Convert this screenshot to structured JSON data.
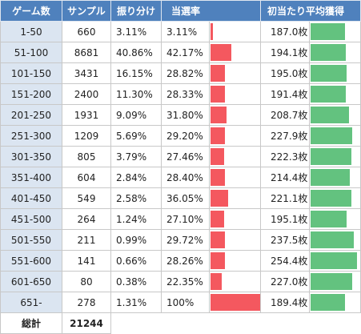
{
  "headers": {
    "game_count": "ゲーム数",
    "samples": "サンプル",
    "distribution": "振り分け",
    "win_rate": "当選率",
    "avg_per_hit": "初当たり平均獲得"
  },
  "rows": [
    {
      "range": "1-50",
      "samples": "660",
      "distribution": "3.11%",
      "win_rate": "3.11%",
      "win_rate_value": 3.11,
      "avg": "187.0枚",
      "avg_value": 187.0
    },
    {
      "range": "51-100",
      "samples": "8681",
      "distribution": "40.86%",
      "win_rate": "42.17%",
      "win_rate_value": 42.17,
      "avg": "194.1枚",
      "avg_value": 194.1
    },
    {
      "range": "101-150",
      "samples": "3431",
      "distribution": "16.15%",
      "win_rate": "28.82%",
      "win_rate_value": 28.82,
      "avg": "195.0枚",
      "avg_value": 195.0
    },
    {
      "range": "151-200",
      "samples": "2400",
      "distribution": "11.30%",
      "win_rate": "28.33%",
      "win_rate_value": 28.33,
      "avg": "191.4枚",
      "avg_value": 191.4
    },
    {
      "range": "201-250",
      "samples": "1931",
      "distribution": "9.09%",
      "win_rate": "31.80%",
      "win_rate_value": 31.8,
      "avg": "208.7枚",
      "avg_value": 208.7
    },
    {
      "range": "251-300",
      "samples": "1209",
      "distribution": "5.69%",
      "win_rate": "29.20%",
      "win_rate_value": 29.2,
      "avg": "227.9枚",
      "avg_value": 227.9
    },
    {
      "range": "301-350",
      "samples": "805",
      "distribution": "3.79%",
      "win_rate": "27.46%",
      "win_rate_value": 27.46,
      "avg": "222.3枚",
      "avg_value": 222.3
    },
    {
      "range": "351-400",
      "samples": "604",
      "distribution": "2.84%",
      "win_rate": "28.40%",
      "win_rate_value": 28.4,
      "avg": "214.4枚",
      "avg_value": 214.4
    },
    {
      "range": "401-450",
      "samples": "549",
      "distribution": "2.58%",
      "win_rate": "36.05%",
      "win_rate_value": 36.05,
      "avg": "221.1枚",
      "avg_value": 221.1
    },
    {
      "range": "451-500",
      "samples": "264",
      "distribution": "1.24%",
      "win_rate": "27.10%",
      "win_rate_value": 27.1,
      "avg": "195.1枚",
      "avg_value": 195.1
    },
    {
      "range": "501-550",
      "samples": "211",
      "distribution": "0.99%",
      "win_rate": "29.72%",
      "win_rate_value": 29.72,
      "avg": "237.5枚",
      "avg_value": 237.5
    },
    {
      "range": "551-600",
      "samples": "141",
      "distribution": "0.66%",
      "win_rate": "28.26%",
      "win_rate_value": 28.26,
      "avg": "254.4枚",
      "avg_value": 254.4
    },
    {
      "range": "601-650",
      "samples": "80",
      "distribution": "0.38%",
      "win_rate": "22.35%",
      "win_rate_value": 22.35,
      "avg": "227.0枚",
      "avg_value": 227.0
    },
    {
      "range": "651-",
      "samples": "278",
      "distribution": "1.31%",
      "win_rate": "100%",
      "win_rate_value": 100,
      "avg": "189.4枚",
      "avg_value": 189.4
    }
  ],
  "total": {
    "label": "総計",
    "samples": "21244"
  },
  "colors": {
    "header_bg": "#4f81bd",
    "range_bg": "#dbe5f1",
    "win_bar": "#f4585f",
    "avg_bar": "#63c27f"
  },
  "bar_scale": {
    "win_rate_max": 100,
    "avg_max": 254.4
  }
}
